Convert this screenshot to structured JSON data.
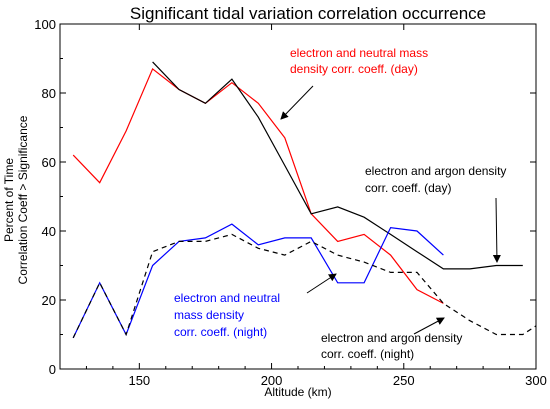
{
  "chart_data": {
    "type": "line",
    "title": "Significant tidal variation correlation occurrence",
    "xlabel": "Altitude (km)",
    "ylabel_lines": [
      "Percent of Time",
      "Correlation Coeff > Significance"
    ],
    "xlim": [
      120,
      300
    ],
    "ylim": [
      0,
      100
    ],
    "x_ticks": [
      150,
      200,
      250,
      300
    ],
    "y_ticks": [
      0,
      20,
      40,
      60,
      80,
      100
    ],
    "grid": false,
    "series": [
      {
        "key": "red",
        "color": "#ff0000",
        "dash": false,
        "points": [
          [
            125,
            62
          ],
          [
            135,
            54
          ],
          [
            145,
            69
          ],
          [
            155,
            87
          ],
          [
            165,
            81
          ],
          [
            175,
            77
          ],
          [
            185,
            83
          ],
          [
            195,
            77
          ],
          [
            205,
            67
          ],
          [
            215,
            45
          ],
          [
            225,
            37
          ],
          [
            235,
            39
          ],
          [
            245,
            33
          ],
          [
            255,
            23
          ],
          [
            265,
            19
          ]
        ]
      },
      {
        "key": "black",
        "color": "#000000",
        "dash": false,
        "points": [
          [
            155,
            89
          ],
          [
            165,
            81
          ],
          [
            175,
            77
          ],
          [
            185,
            84
          ],
          [
            195,
            73
          ],
          [
            205,
            59
          ],
          [
            215,
            45
          ],
          [
            225,
            47
          ],
          [
            235,
            44
          ],
          [
            245,
            39
          ],
          [
            255,
            34
          ],
          [
            265,
            29
          ],
          [
            275,
            29
          ],
          [
            285,
            30
          ],
          [
            295,
            30
          ]
        ]
      },
      {
        "key": "blue",
        "color": "#0000ff",
        "dash": false,
        "points": [
          [
            125,
            9
          ],
          [
            135,
            25
          ],
          [
            145,
            10
          ],
          [
            155,
            30
          ],
          [
            165,
            37
          ],
          [
            175,
            38
          ],
          [
            185,
            42
          ],
          [
            195,
            36
          ],
          [
            205,
            38
          ],
          [
            215,
            38
          ],
          [
            225,
            25
          ],
          [
            235,
            25
          ],
          [
            245,
            41
          ],
          [
            255,
            40
          ],
          [
            265,
            33
          ]
        ]
      },
      {
        "key": "black-dashed",
        "color": "#000000",
        "dash": true,
        "points": [
          [
            125,
            9
          ],
          [
            135,
            25
          ],
          [
            145,
            10
          ],
          [
            155,
            34
          ],
          [
            165,
            37
          ],
          [
            175,
            37
          ],
          [
            185,
            39
          ],
          [
            195,
            35
          ],
          [
            205,
            33
          ],
          [
            215,
            37
          ],
          [
            225,
            33
          ],
          [
            235,
            31
          ],
          [
            245,
            28
          ],
          [
            255,
            28
          ],
          [
            265,
            19
          ],
          [
            275,
            14
          ],
          [
            285,
            10
          ],
          [
            295,
            10
          ],
          [
            305,
            15
          ]
        ]
      }
    ],
    "annotations": [
      {
        "key": "red",
        "color": "#ff0000",
        "lines": [
          "electron and neutral mass",
          "density  corr. coeff. (day)"
        ]
      },
      {
        "key": "black",
        "color": "#000000",
        "lines": [
          "electron and argon density",
          "corr. coeff. (day)"
        ]
      },
      {
        "key": "blue",
        "color": "#0000ff",
        "lines": [
          "electron and neutral",
          "mass density",
          "corr. coeff. (night)"
        ]
      },
      {
        "key": "black-dashed",
        "color": "#000000",
        "lines": [
          "electron and argon density",
          "corr. coeff. (night)"
        ]
      }
    ]
  }
}
